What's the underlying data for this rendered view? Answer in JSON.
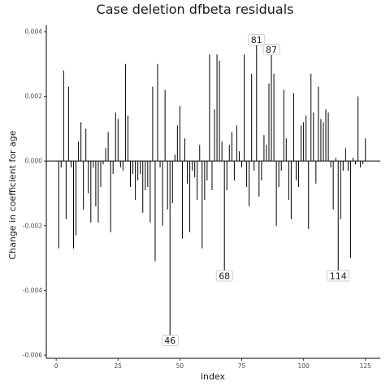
{
  "chart_data": {
    "type": "bar",
    "subtype": "spike",
    "title": "Case deletion dfbeta residuals",
    "xlabel": "index",
    "ylabel": "Change in coefficient for age",
    "xlim": [
      -4,
      131
    ],
    "ylim": [
      -0.0061,
      0.0042
    ],
    "xticks": [
      0,
      25,
      50,
      75,
      100,
      125
    ],
    "yticks": [
      -0.006,
      -0.004,
      -0.002,
      0.0,
      0.002,
      0.004
    ],
    "ytick_labels": [
      "-0.006",
      "-0.004",
      "-0.002",
      "0.000",
      "0.002",
      "0.004"
    ],
    "grid": false,
    "colors": {
      "line": "#000000",
      "axis": "#000000",
      "label_box": "#ffffff",
      "label_border": "#bfbfbf"
    },
    "x": [
      1,
      2,
      3,
      4,
      5,
      6,
      7,
      8,
      9,
      10,
      11,
      12,
      13,
      14,
      15,
      16,
      17,
      18,
      19,
      20,
      21,
      22,
      23,
      24,
      25,
      26,
      27,
      28,
      29,
      30,
      31,
      32,
      33,
      34,
      35,
      36,
      37,
      38,
      39,
      40,
      41,
      42,
      43,
      44,
      45,
      46,
      47,
      48,
      49,
      50,
      51,
      52,
      53,
      54,
      55,
      56,
      57,
      58,
      59,
      60,
      61,
      62,
      63,
      64,
      65,
      66,
      67,
      68,
      69,
      70,
      71,
      72,
      73,
      74,
      75,
      76,
      77,
      78,
      79,
      80,
      81,
      82,
      83,
      84,
      85,
      86,
      87,
      88,
      89,
      90,
      91,
      92,
      93,
      94,
      95,
      96,
      97,
      98,
      99,
      100,
      101,
      102,
      103,
      104,
      105,
      106,
      107,
      108,
      109,
      110,
      111,
      112,
      113,
      114,
      115,
      116,
      117,
      118,
      119,
      120,
      121,
      122,
      123,
      124,
      125
    ],
    "values": [
      -0.0027,
      -0.0002,
      0.0028,
      -0.0018,
      0.0023,
      -0.0002,
      -0.0027,
      -0.0023,
      0.0006,
      0.0012,
      -0.0015,
      0.001,
      -0.001,
      -0.0019,
      -0.0002,
      -0.0014,
      -0.0019,
      -0.0008,
      -0.0001,
      0.0004,
      0.0009,
      -0.0022,
      -0.0004,
      0.0015,
      0.0013,
      -0.0002,
      -0.0003,
      0.003,
      0.0014,
      -0.0008,
      -0.0004,
      -0.0012,
      -0.0006,
      -0.0004,
      -0.0016,
      -0.0009,
      -0.0008,
      -0.0019,
      0.0023,
      -0.0031,
      0.003,
      -0.0002,
      -0.002,
      0.0022,
      -0.0015,
      -0.0055,
      -0.0013,
      0.0002,
      0.0011,
      0.0017,
      -0.0024,
      0.0007,
      -0.0007,
      -0.0022,
      -0.0003,
      -0.0005,
      -0.0012,
      0.0005,
      -0.0027,
      -0.0012,
      -0.0006,
      0.0033,
      -0.0009,
      0.0016,
      0.0033,
      0.0031,
      0.0006,
      -0.0035,
      -0.0009,
      0.0005,
      0.0009,
      -0.0006,
      0.0011,
      0.0003,
      -0.0002,
      0.0033,
      -0.0008,
      -0.0014,
      0.0027,
      -0.0003,
      0.0037,
      -0.0011,
      -0.0006,
      0.0008,
      0.0005,
      0.0024,
      0.0034,
      0.0027,
      -0.002,
      -0.0008,
      -0.0003,
      0.0022,
      0.0007,
      -0.0012,
      -0.0018,
      0.0021,
      -0.0006,
      -0.0008,
      0.0011,
      0.0012,
      0.0014,
      -0.0021,
      0.0027,
      0.0015,
      -0.0007,
      0.0023,
      0.0013,
      0.0012,
      0.0016,
      0.0015,
      -0.0002,
      -0.0015,
      0.0001,
      -0.0035,
      -0.0018,
      -0.0003,
      0.0004,
      -0.0003,
      -0.003,
      0.0001,
      -0.0001,
      0.002,
      -0.0002,
      -0.0001,
      0.0007
    ],
    "annotations": [
      {
        "label": "46",
        "x": 46,
        "y": -0.0055
      },
      {
        "label": "68",
        "x": 68,
        "y": -0.0035
      },
      {
        "label": "81",
        "x": 81,
        "y": 0.0037
      },
      {
        "label": "87",
        "x": 87,
        "y": 0.0034
      },
      {
        "label": "114",
        "x": 114,
        "y": -0.0035
      }
    ]
  }
}
